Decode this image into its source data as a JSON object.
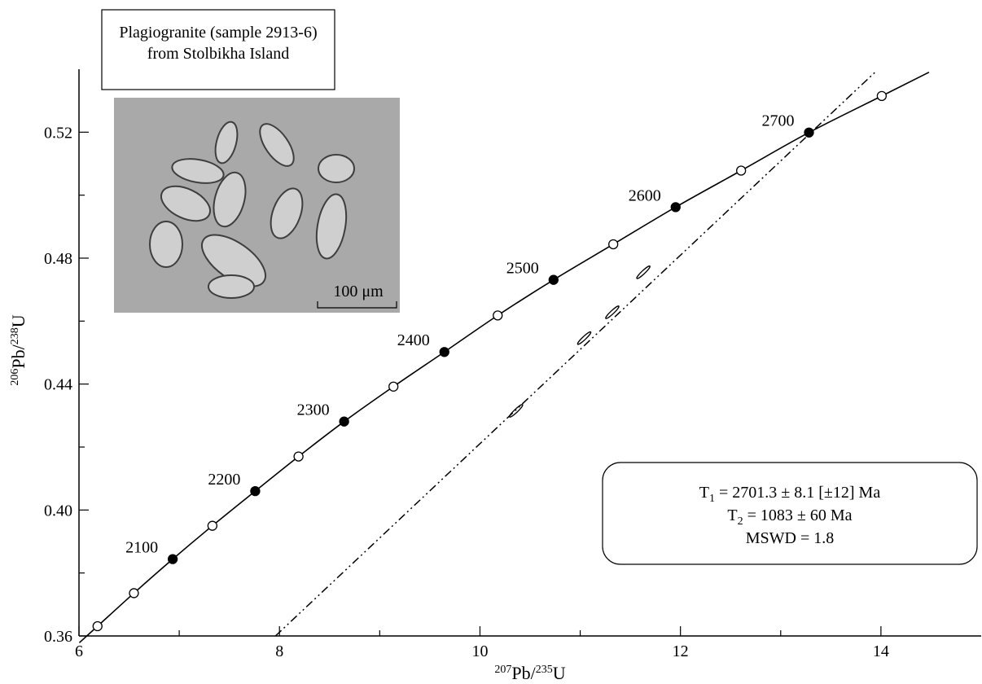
{
  "chart_data": {
    "type": "scatter",
    "title": [
      "Plagiogranite (sample 2913-6)",
      "from Stolbikha Island"
    ],
    "xlabel": {
      "sup1": "207",
      "base1": "Pb/",
      "sup2": "235",
      "base2": "U"
    },
    "ylabel": {
      "sup1": "206",
      "base1": "Pb/",
      "sup2": "238",
      "base2": "U"
    },
    "xlim": [
      6,
      15
    ],
    "ylim": [
      0.36,
      0.54
    ],
    "xticks": [
      6,
      8,
      10,
      12,
      14
    ],
    "yticks": [
      0.36,
      {
        "value": 0.4,
        "label": "0.40"
      },
      0.44,
      0.48,
      0.52
    ],
    "xminor": [
      7,
      9,
      11,
      13
    ],
    "yminor": [
      0.38,
      0.42,
      0.46,
      0.5
    ],
    "concordia": {
      "color": "#000000",
      "x": [
        6.185,
        6.548,
        6.935,
        7.331,
        7.758,
        8.19,
        8.645,
        9.137,
        9.645,
        10.177,
        10.734,
        11.33,
        11.952,
        12.605,
        13.282,
        14.008
      ],
      "y": [
        0.3631,
        0.3736,
        0.3844,
        0.395,
        0.406,
        0.417,
        0.4281,
        0.4392,
        0.4502,
        0.4618,
        0.4731,
        0.4844,
        0.4962,
        0.5078,
        0.5199,
        0.5315
      ],
      "labels": [
        null,
        null,
        2100,
        null,
        2200,
        null,
        2300,
        null,
        2400,
        null,
        2500,
        null,
        2600,
        null,
        2700,
        null
      ],
      "filled": [
        false,
        false,
        true,
        false,
        true,
        false,
        true,
        false,
        true,
        false,
        true,
        false,
        true,
        false,
        true,
        false
      ]
    },
    "discordia": {
      "x": [
        7.96,
        13.94
      ],
      "y": [
        0.36,
        0.539
      ]
    },
    "analyses": {
      "x": [
        10.36,
        11.04,
        11.32,
        11.63
      ],
      "y": [
        0.4315,
        0.4546,
        0.4628,
        0.4755
      ]
    },
    "scale_bar": "100 μm",
    "results": [
      {
        "symbol": "T",
        "sub": "1",
        "text": "= 2701.3 ± 8.1 [±12] Ma"
      },
      {
        "symbol": "T",
        "sub": "2",
        "text": "= 1083 ± 60 Ma"
      },
      {
        "text": "MSWD = 1.8"
      }
    ]
  }
}
